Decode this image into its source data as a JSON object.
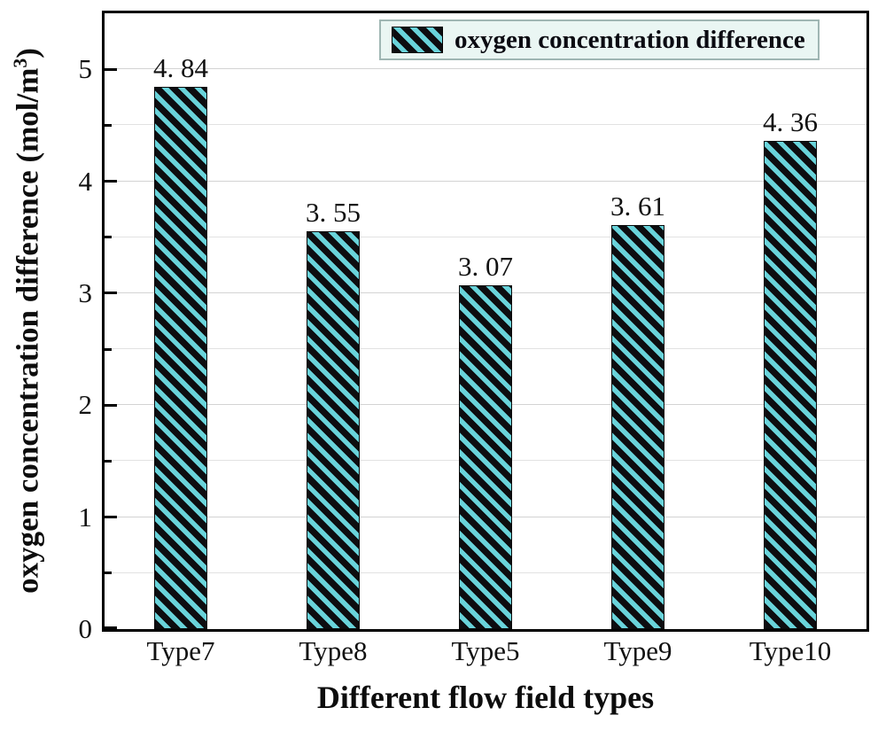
{
  "chart_data": {
    "type": "bar",
    "categories": [
      "Type7",
      "Type8",
      "Type5",
      "Type9",
      "Type10"
    ],
    "values": [
      4.84,
      3.55,
      3.07,
      3.61,
      4.36
    ],
    "value_labels": [
      "4. 84",
      "3. 55",
      "3. 07",
      "3. 61",
      "4. 36"
    ],
    "title": "",
    "xlabel": "Different flow field types",
    "ylabel": "oxygen concentration difference (mol/m³)",
    "ylim": [
      0,
      5.5
    ],
    "yticks": [
      0,
      1,
      2,
      3,
      4,
      5
    ],
    "ytick_labels": [
      "0",
      "1",
      "2",
      "3",
      "4",
      "5"
    ],
    "minor_tick_step": 0.5,
    "grid": "horizontal, every 0.5, light gray",
    "legend_position": "top-right-inside",
    "bar_style": {
      "fill": "#0d0d10",
      "hatch_pattern": "backslash-diagonal-stripes",
      "hatch_color": "#69d3da",
      "edge_color": "#0a0a0a"
    }
  },
  "legend": {
    "label": "oxygen concentration difference",
    "background": "#eaf6f3",
    "border_color": "#9fb6b3",
    "swatch": "black-with-cyan-backslash-hatch"
  },
  "y_axis": {
    "title_prefix": "oxygen concentration difference (mol/m",
    "title_sup": "3",
    "title_suffix": ")"
  },
  "x_axis": {
    "title": "Different flow field types"
  },
  "colors": {
    "axis": "#000000",
    "grid_major": "#d3d3d3",
    "grid_minor": "#e2e2e2",
    "text": "#111111",
    "background": "#ffffff"
  }
}
